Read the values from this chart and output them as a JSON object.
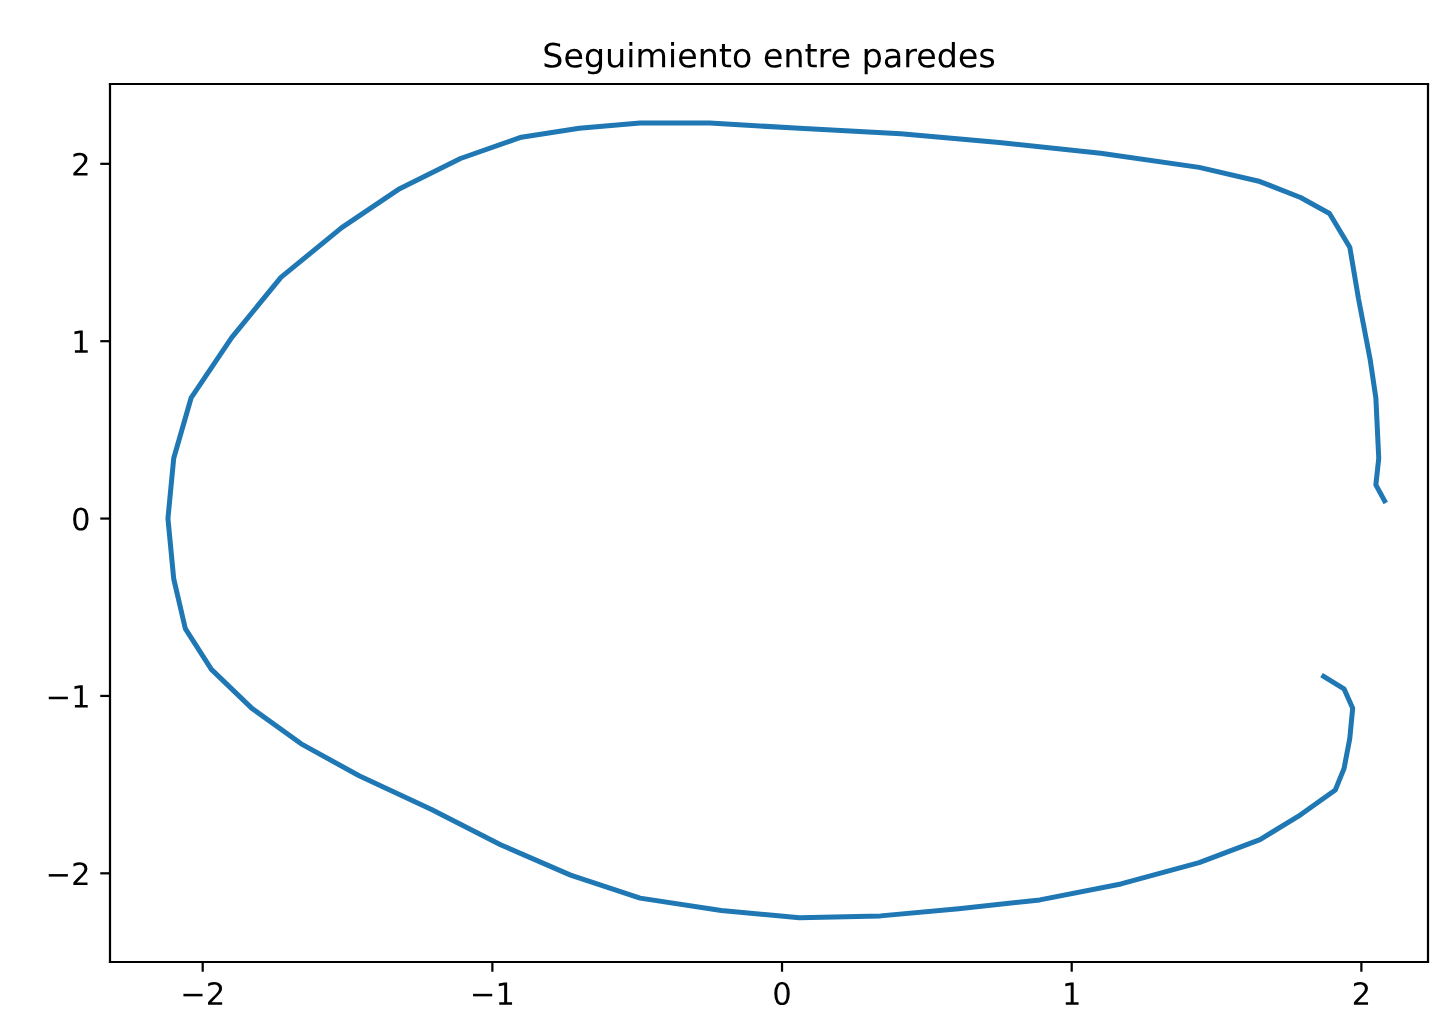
{
  "chart_data": {
    "type": "line",
    "title": "Seguimiento entre paredes",
    "series": [
      {
        "color": "#1f77b4",
        "x": [
          2.08,
          2.05,
          2.06,
          2.05,
          2.03,
          1.99,
          1.96,
          1.89,
          1.79,
          1.65,
          1.44,
          1.1,
          0.75,
          0.41,
          0.06,
          -0.25,
          -0.49,
          -0.7,
          -0.9,
          -1.11,
          -1.32,
          -1.52,
          -1.73,
          -1.9,
          -2.04,
          -2.1,
          -2.12,
          -2.1,
          -2.06,
          -1.97,
          -1.83,
          -1.66,
          -1.46,
          -1.21,
          -0.97,
          -0.73,
          -0.49,
          -0.21,
          0.06,
          0.34,
          0.61,
          0.89,
          1.17,
          1.44,
          1.65,
          1.79,
          1.91,
          1.94,
          1.96,
          1.97,
          1.94,
          1.87
        ],
        "values": [
          0.1,
          0.19,
          0.34,
          0.68,
          0.9,
          1.24,
          1.53,
          1.72,
          1.81,
          1.9,
          1.98,
          2.06,
          2.12,
          2.17,
          2.2,
          2.23,
          2.23,
          2.2,
          2.15,
          2.03,
          1.86,
          1.64,
          1.36,
          1.02,
          0.68,
          0.34,
          0.0,
          -0.34,
          -0.62,
          -0.85,
          -1.07,
          -1.27,
          -1.45,
          -1.64,
          -1.84,
          -2.01,
          -2.14,
          -2.21,
          -2.25,
          -2.24,
          -2.2,
          -2.15,
          -2.06,
          -1.94,
          -1.81,
          -1.67,
          -1.53,
          -1.41,
          -1.24,
          -1.07,
          -0.96,
          -0.89
        ]
      }
    ],
    "xlim": [
      -2.32,
      2.23
    ],
    "ylim": [
      -2.5,
      2.45
    ],
    "xticks": [
      -2,
      -1,
      0,
      1,
      2
    ],
    "yticks": [
      -2,
      -1,
      0,
      1,
      2
    ]
  }
}
